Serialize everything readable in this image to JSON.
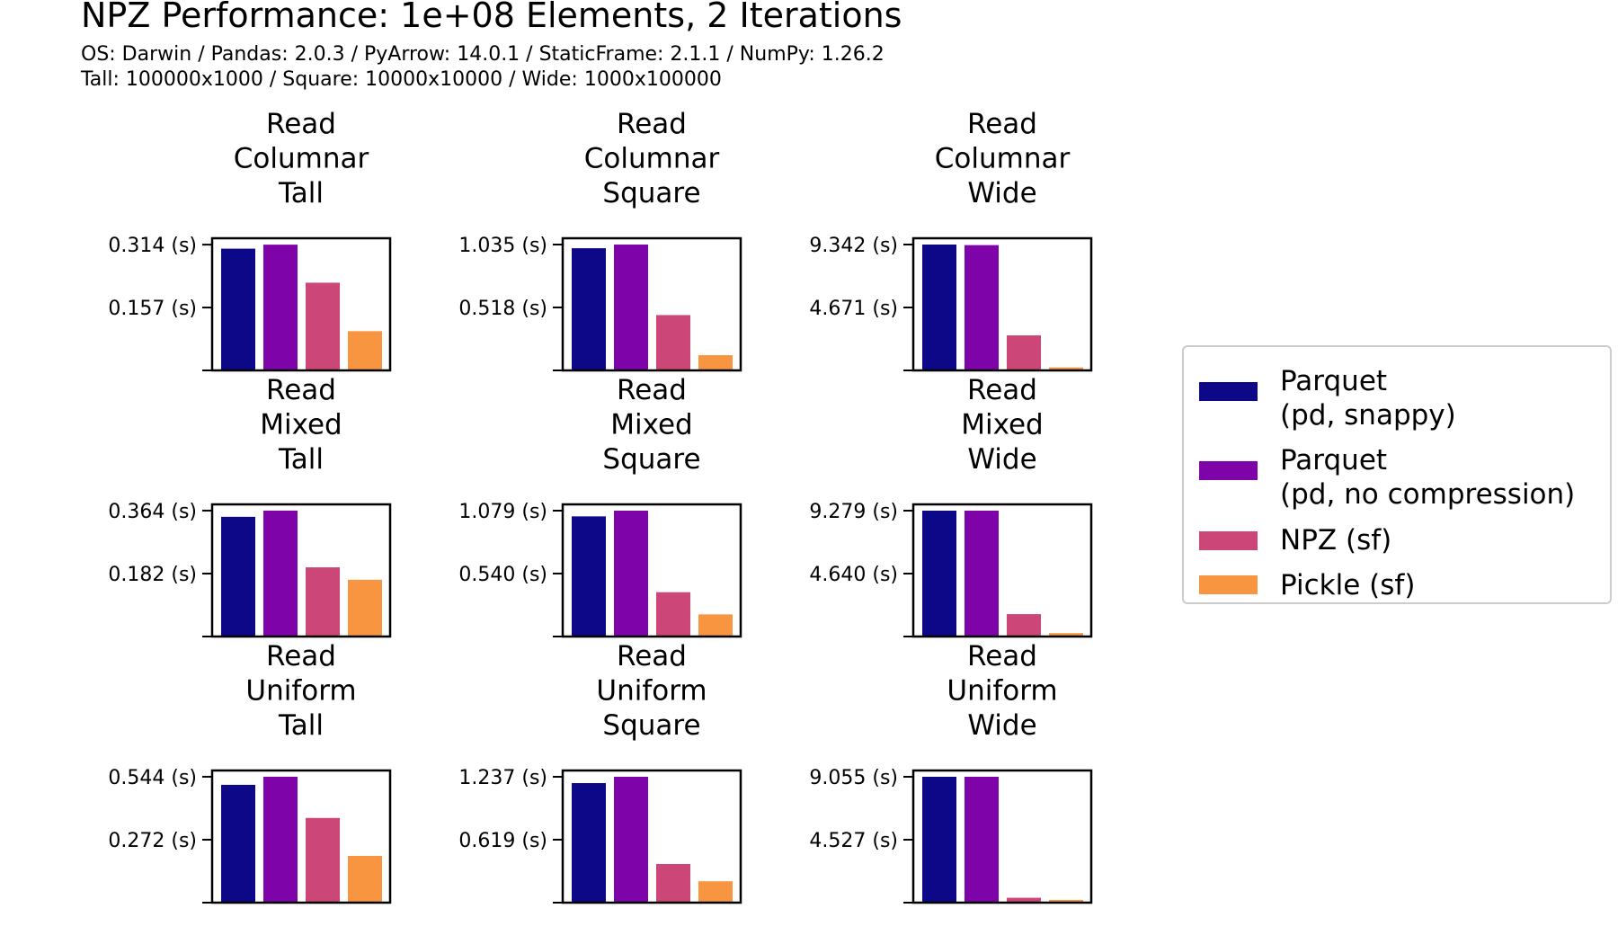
{
  "title": "NPZ Performance: 1e+08 Elements, 2 Iterations",
  "subtitle_lines": [
    "OS: Darwin / Pandas: 2.0.3 / PyArrow: 14.0.1 / StaticFrame: 2.1.1 / NumPy: 1.26.2",
    "Tall: 100000x1000 / Square: 10000x10000 / Wide: 1000x100000"
  ],
  "chart_data": {
    "type": "bar",
    "layout": "3x3 grid of subplots",
    "legend_position": "right",
    "series": [
      {
        "name": "Parquet\n(pd, snappy)",
        "color": "#0d0887"
      },
      {
        "name": "Parquet\n(pd, no compression)",
        "color": "#7e03a8"
      },
      {
        "name": "NPZ (sf)",
        "color": "#cc4778"
      },
      {
        "name": "Pickle (sf)",
        "color": "#f89540"
      }
    ],
    "subplots": [
      {
        "title": "Read\nColumnar\nTall",
        "ytick_labels": [
          "0.314 (s)",
          "0.157 (s)"
        ],
        "ytick_values": [
          0.314,
          0.157
        ],
        "ylim": [
          0,
          0.33
        ],
        "values": [
          0.304,
          0.314,
          0.219,
          0.098
        ]
      },
      {
        "title": "Read\nColumnar\nSquare",
        "ytick_labels": [
          "1.035 (s)",
          "0.518 (s)"
        ],
        "ytick_values": [
          1.035,
          0.518
        ],
        "ylim": [
          0,
          1.087
        ],
        "values": [
          1.005,
          1.035,
          0.455,
          0.125
        ]
      },
      {
        "title": "Read\nColumnar\nWide",
        "ytick_labels": [
          "9.342 (s)",
          "4.671 (s)"
        ],
        "ytick_values": [
          9.342,
          4.671
        ],
        "ylim": [
          0,
          9.81
        ],
        "values": [
          9.342,
          9.3,
          2.6,
          0.22
        ]
      },
      {
        "title": "Read\nMixed\nTall",
        "ytick_labels": [
          "0.364 (s)",
          "0.182 (s)"
        ],
        "ytick_values": [
          0.364,
          0.182
        ],
        "ylim": [
          0,
          0.382
        ],
        "values": [
          0.346,
          0.364,
          0.2,
          0.164
        ]
      },
      {
        "title": "Read\nMixed\nSquare",
        "ytick_labels": [
          "1.079 (s)",
          "0.540 (s)"
        ],
        "ytick_values": [
          1.079,
          0.54
        ],
        "ylim": [
          0,
          1.133
        ],
        "values": [
          1.03,
          1.079,
          0.38,
          0.19
        ]
      },
      {
        "title": "Read\nMixed\nWide",
        "ytick_labels": [
          "9.279 (s)",
          "4.640 (s)"
        ],
        "ytick_values": [
          9.279,
          4.64
        ],
        "ylim": [
          0,
          9.743
        ],
        "values": [
          9.279,
          9.279,
          1.65,
          0.25
        ]
      },
      {
        "title": "Read\nUniform\nTall",
        "ytick_labels": [
          "0.544 (s)",
          "0.272 (s)"
        ],
        "ytick_values": [
          0.544,
          0.272
        ],
        "ylim": [
          0,
          0.571
        ],
        "values": [
          0.509,
          0.544,
          0.366,
          0.202
        ]
      },
      {
        "title": "Read\nUniform\nSquare",
        "ytick_labels": [
          "1.237 (s)",
          "0.619 (s)"
        ],
        "ytick_values": [
          1.237,
          0.619
        ],
        "ylim": [
          0,
          1.299
        ],
        "values": [
          1.175,
          1.237,
          0.38,
          0.21
        ]
      },
      {
        "title": "Read\nUniform\nWide",
        "ytick_labels": [
          "9.055 (s)",
          "4.527 (s)"
        ],
        "ytick_values": [
          9.055,
          4.527
        ],
        "ylim": [
          0,
          9.508
        ],
        "values": [
          9.055,
          9.055,
          0.35,
          0.2
        ]
      }
    ]
  }
}
